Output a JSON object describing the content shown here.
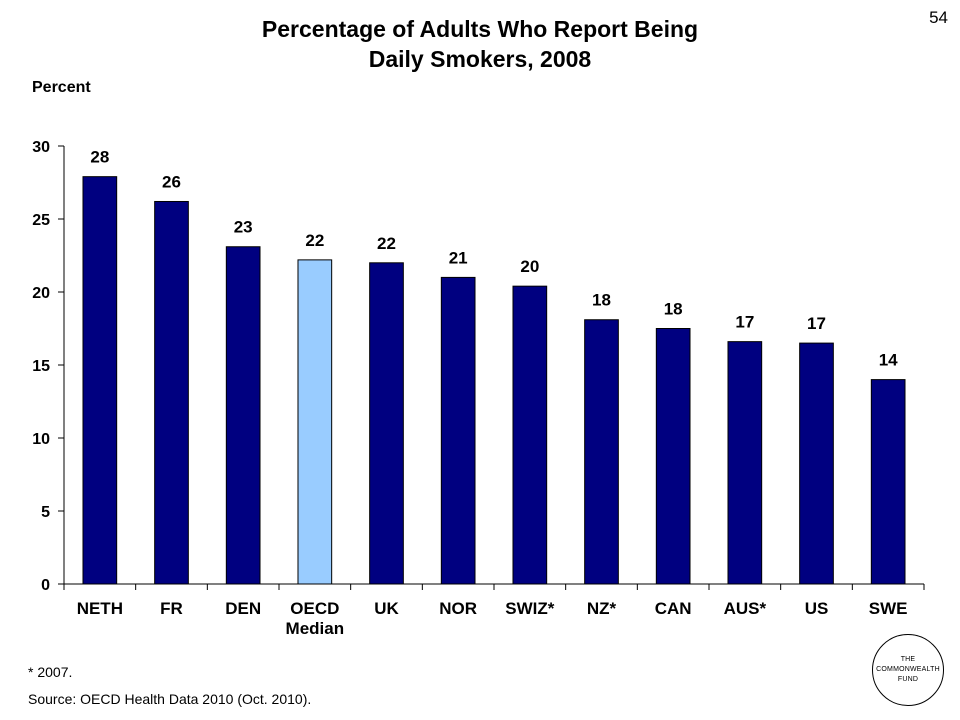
{
  "slide_number": "54",
  "title_line1": "Percentage of Adults Who Report Being",
  "title_line2": "Daily Smokers, 2008",
  "footnote": "* 2007.",
  "source": "Source: OECD Health Data 2010 (Oct. 2010).",
  "logo": {
    "line1": "THE",
    "line2": "COMMONWEALTH",
    "line3": "FUND"
  },
  "colors": {
    "bar": "#000080",
    "highlight": "#99CCFF"
  },
  "chart_data": {
    "type": "bar",
    "title": "Percentage of Adults Who Report Being Daily Smokers, 2008",
    "ylabel": "Percent",
    "xlabel": "",
    "ylim": [
      0,
      30
    ],
    "yticks": [
      0,
      5,
      10,
      15,
      20,
      25,
      30
    ],
    "grid": false,
    "categories": [
      "NETH",
      "FR",
      "DEN",
      "OECD\nMedian",
      "UK",
      "NOR",
      "SWIZ*",
      "NZ*",
      "CAN",
      "AUS*",
      "US",
      "SWE"
    ],
    "values": [
      27.9,
      26.2,
      23.1,
      22.2,
      22.0,
      21.0,
      20.4,
      18.1,
      17.5,
      16.6,
      16.5,
      14.0
    ],
    "data_labels": [
      "28",
      "26",
      "23",
      "22",
      "22",
      "21",
      "20",
      "18",
      "18",
      "17",
      "17",
      "14"
    ],
    "highlight_category": "OECD\nMedian"
  }
}
